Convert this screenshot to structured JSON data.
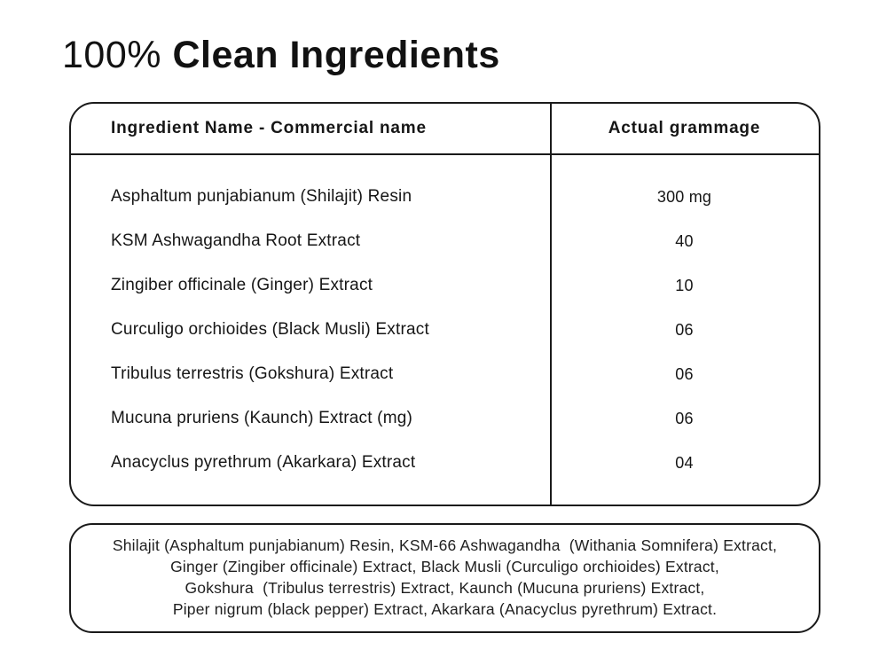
{
  "title": {
    "prefix": "100% ",
    "main": "Clean Ingredients"
  },
  "table": {
    "headers": [
      "Ingredient Name - Commercial name",
      "Actual grammage"
    ],
    "rows": [
      {
        "name": "Asphaltum punjabianum (Shilajit) Resin",
        "value": "300 mg"
      },
      {
        "name": "KSM Ashwagandha Root Extract",
        "value": "40"
      },
      {
        "name": "Zingiber officinale (Ginger) Extract",
        "value": "10"
      },
      {
        "name": "Curculigo orchioides (Black Musli) Extract",
        "value": "06"
      },
      {
        "name": "Tribulus terrestris (Gokshura) Extract",
        "value": "06"
      },
      {
        "name": "Mucuna pruriens (Kaunch) Extract (mg)",
        "value": "06"
      },
      {
        "name": "Anacyclus pyrethrum (Akarkara) Extract",
        "value": "04"
      }
    ]
  },
  "footer": {
    "lines": [
      "Shilajit (Asphaltum punjabianum) Resin, KSM-66 Ashwagandha  (Withania Somnifera) Extract,",
      "Ginger (Zingiber officinale) Extract, Black Musli (Curculigo orchioides) Extract,",
      "Gokshura  (Tribulus terrestris) Extract, Kaunch (Mucuna pruriens) Extract,",
      "Piper nigrum (black pepper) Extract, Akarkara (Anacyclus pyrethrum) Extract."
    ]
  },
  "colors": {
    "ink": "#1a1a1a",
    "background": "#ffffff"
  }
}
